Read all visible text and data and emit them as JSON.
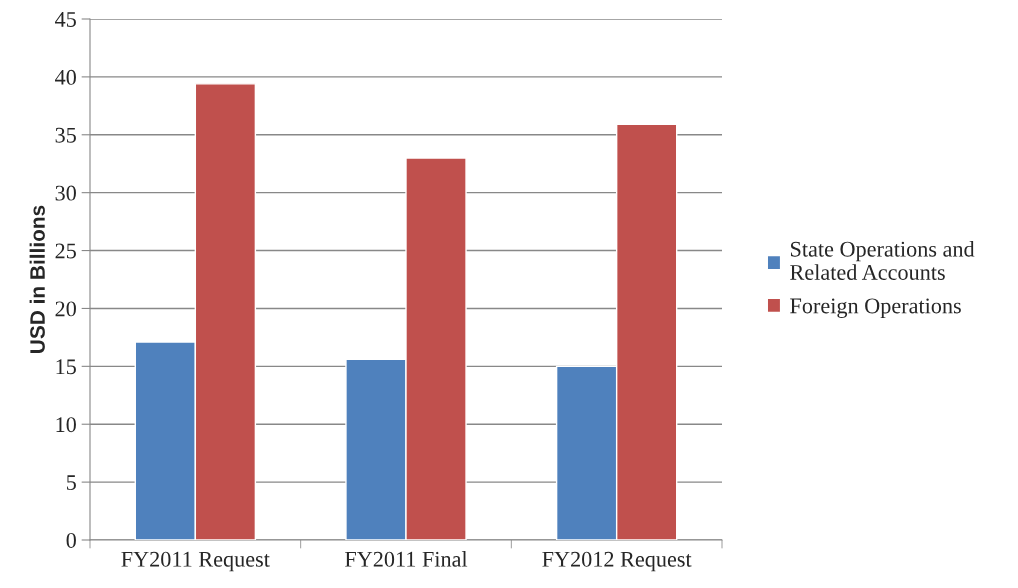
{
  "chart_data": {
    "type": "bar",
    "ylabel": "USD in Billions",
    "categories": [
      "FY2011 Request",
      "FY2011 Final",
      "FY2012 Request"
    ],
    "series": [
      {
        "name": "State Operations and\nRelated Accounts",
        "color": "#4f81bd",
        "values": [
          17.1,
          15.6,
          15.0
        ]
      },
      {
        "name": "Foreign Operations",
        "color": "#c0504d",
        "values": [
          39.4,
          33.0,
          35.9
        ]
      }
    ],
    "ylim": [
      0,
      45
    ],
    "yticks": [
      0,
      5,
      10,
      15,
      20,
      25,
      30,
      35,
      40,
      45
    ],
    "grid": "y",
    "legend": "right"
  }
}
